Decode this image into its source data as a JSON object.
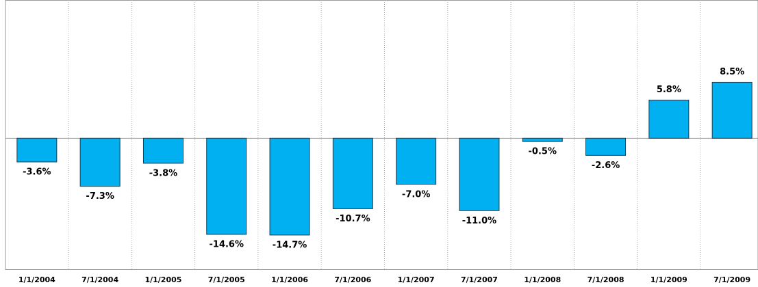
{
  "chart_data": {
    "type": "bar",
    "categories": [
      "1/1/2004",
      "7/1/2004",
      "1/1/2005",
      "7/1/2005",
      "1/1/2006",
      "7/1/2006",
      "1/1/2007",
      "7/1/2007",
      "1/1/2008",
      "7/1/2008",
      "1/1/2009",
      "7/1/2009"
    ],
    "values": [
      -3.6,
      -7.3,
      -3.8,
      -14.6,
      -14.7,
      -10.7,
      -7.0,
      -11.0,
      -0.5,
      -2.6,
      5.8,
      8.5
    ],
    "value_labels": [
      "-3.6%",
      "-7.3%",
      "-3.8%",
      "-14.6%",
      "-14.7%",
      "-10.7%",
      "-7.0%",
      "-11.0%",
      "-0.5%",
      "-2.6%",
      "5.8%",
      "8.5%"
    ],
    "color": "#00b0f0",
    "ylim": [
      -20,
      21
    ]
  }
}
